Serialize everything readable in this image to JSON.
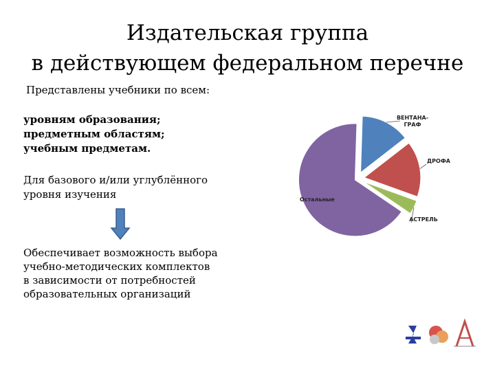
{
  "slide": {
    "title_lines": [
      "Издательская группа",
      "в действующем федеральном перечне"
    ],
    "subtitle": "Представлены учебники по всем:",
    "levels": [
      "уровням образования;",
      "предметным областям;",
      "учебным предметам."
    ],
    "basic_lines": [
      "Для базового и/или углублённого",
      "уровня изучения"
    ],
    "result_lines": [
      "Обеспечивает возможность выбора",
      "учебно-методических комплектов",
      "в зависимости от потребностей",
      "образовательных организаций"
    ]
  },
  "chart_data": {
    "type": "pie",
    "title": "",
    "slices": [
      {
        "label": "ВЕНТАНА-ГРАФ",
        "label_lines": [
          "ВЕНТАНА-",
          "ГРАФ"
        ],
        "value": 14,
        "color": "#4F81BD"
      },
      {
        "label": "ДРОФА",
        "label_lines": [
          "ДРОФА"
        ],
        "value": 16,
        "color": "#C0504D"
      },
      {
        "label": "АСТРЕЛЬ",
        "label_lines": [
          "АСТРЕЛЬ"
        ],
        "value": 4,
        "color": "#9BBB59"
      },
      {
        "label": "Остальные",
        "label_lines": [
          "Остальные"
        ],
        "value": 66,
        "color": "#8064A2"
      }
    ],
    "legend": "none"
  },
  "colors": {
    "arrow": "#4F81BD"
  },
  "icons": {
    "logo_1": "ventana-graf-logo",
    "logo_2": "drofa-logo",
    "logo_3": "astrel-logo"
  }
}
